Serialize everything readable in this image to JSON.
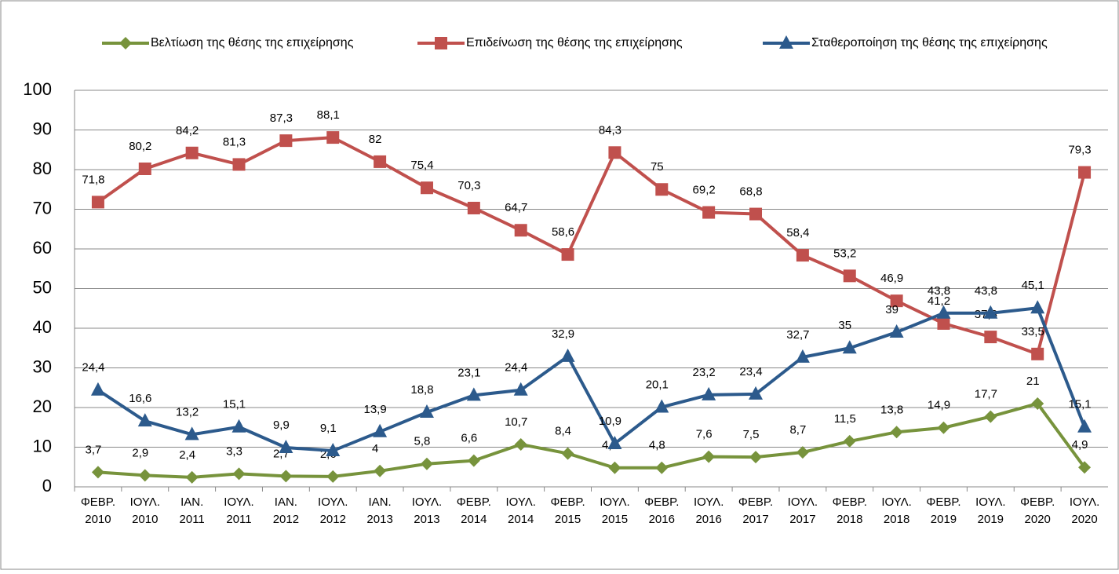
{
  "chart_data": {
    "type": "line",
    "categories": [
      "ΦΕΒΡ. 2010",
      "ΙΟΥΛ. 2010",
      "ΙΑΝ. 2011",
      "ΙΟΥΛ. 2011",
      "ΙΑΝ. 2012",
      "ΙΟΥΛ. 2012",
      "ΙΑΝ. 2013",
      "ΙΟΥΛ. 2013",
      "ΦΕΒΡ. 2014",
      "ΙΟΥΛ. 2014",
      "ΦΕΒΡ. 2015",
      "ΙΟΥΛ. 2015",
      "ΦΕΒΡ. 2016",
      "ΙΟΥΛ. 2016",
      "ΦΕΒΡ. 2017",
      "ΙΟΥΛ. 2017",
      "ΦΕΒΡ. 2018",
      "ΙΟΥΛ. 2018",
      "ΦΕΒΡ. 2019",
      "ΙΟΥΛ. 2019",
      "ΦΕΒΡ. 2020",
      "ΙΟΥΛ. 2020"
    ],
    "series": [
      {
        "name": "Βελτίωση της θέσης της επιχείρησης",
        "color": "#77933c",
        "marker": "diamond",
        "values": [
          3.7,
          2.9,
          2.4,
          3.3,
          2.7,
          2.6,
          4,
          5.8,
          6.6,
          10.7,
          8.4,
          4.8,
          4.8,
          7.6,
          7.5,
          8.7,
          11.5,
          13.8,
          14.9,
          17.7,
          21,
          4.9
        ],
        "value_labels": [
          "3,7",
          "2,9",
          "2,4",
          "3,3",
          "2,7",
          "2,6",
          "4",
          "5,8",
          "6,6",
          "10,7",
          "8,4",
          "4,8",
          "4,8",
          "7,6",
          "7,5",
          "8,7",
          "11,5",
          "13,8",
          "14,9",
          "17,7",
          "21",
          "4,9"
        ]
      },
      {
        "name": "Επιδείνωση της θέσης της επιχείρησης",
        "color": "#c0504d",
        "marker": "square",
        "values": [
          71.8,
          80.2,
          84.2,
          81.3,
          87.3,
          88.1,
          82,
          75.4,
          70.3,
          64.7,
          58.6,
          84.3,
          75,
          69.2,
          68.8,
          58.4,
          53.2,
          46.9,
          41.2,
          37.8,
          33.5,
          79.3
        ],
        "value_labels": [
          "71,8",
          "80,2",
          "84,2",
          "81,3",
          "87,3",
          "88,1",
          "82",
          "75,4",
          "70,3",
          "64,7",
          "58,6",
          "84,3",
          "75",
          "69,2",
          "68,8",
          "58,4",
          "53,2",
          "46,9",
          "41,2",
          "37,8",
          "33,5",
          "79,3"
        ]
      },
      {
        "name": "Σταθεροποίηση της θέσης της επιχείρησης",
        "color": "#2c5a8c",
        "marker": "triangle",
        "values": [
          24.4,
          16.6,
          13.2,
          15.1,
          9.9,
          9.1,
          13.9,
          18.8,
          23.1,
          24.4,
          32.9,
          10.9,
          20.1,
          23.2,
          23.4,
          32.7,
          35,
          39,
          43.8,
          43.8,
          45.1,
          15.1
        ],
        "value_labels": [
          "24,4",
          "16,6",
          "13,2",
          "15,1",
          "9,9",
          "9,1",
          "13,9",
          "18,8",
          "23,1",
          "24,4",
          "32,9",
          "10,9",
          "20,1",
          "23,2",
          "23,4",
          "32,7",
          "35",
          "39",
          "43,8",
          "43,8",
          "45,1",
          "15,1"
        ]
      }
    ],
    "ylim": [
      0,
      100
    ],
    "yticks": [
      0,
      10,
      20,
      30,
      40,
      50,
      60,
      70,
      80,
      90,
      100
    ],
    "grid": true,
    "legend": "top"
  }
}
